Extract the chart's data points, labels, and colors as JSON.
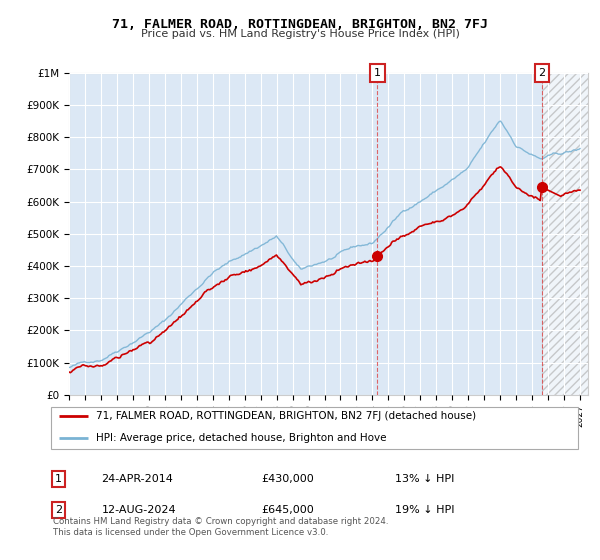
{
  "title": "71, FALMER ROAD, ROTTINGDEAN, BRIGHTON, BN2 7FJ",
  "subtitle": "Price paid vs. HM Land Registry's House Price Index (HPI)",
  "legend_line1": "71, FALMER ROAD, ROTTINGDEAN, BRIGHTON, BN2 7FJ (detached house)",
  "legend_line2": "HPI: Average price, detached house, Brighton and Hove",
  "annotation1_date": "24-APR-2014",
  "annotation1_price": "£430,000",
  "annotation1_hpi": "13% ↓ HPI",
  "annotation2_date": "12-AUG-2024",
  "annotation2_price": "£645,000",
  "annotation2_hpi": "19% ↓ HPI",
  "footer": "Contains HM Land Registry data © Crown copyright and database right 2024.\nThis data is licensed under the Open Government Licence v3.0.",
  "ylim": [
    0,
    1000000
  ],
  "yticks": [
    0,
    100000,
    200000,
    300000,
    400000,
    500000,
    600000,
    700000,
    800000,
    900000,
    1000000
  ],
  "ytick_labels": [
    "£0",
    "£100K",
    "£200K",
    "£300K",
    "£400K",
    "£500K",
    "£600K",
    "£700K",
    "£800K",
    "£900K",
    "£1M"
  ],
  "xlim_start": 1995.0,
  "xlim_end": 2027.5,
  "hpi_color": "#7ab3d4",
  "property_color": "#cc0000",
  "sale1_x": 2014.31,
  "sale1_y": 430000,
  "sale2_x": 2024.62,
  "sale2_y": 645000,
  "plot_bg": "#dce8f5"
}
